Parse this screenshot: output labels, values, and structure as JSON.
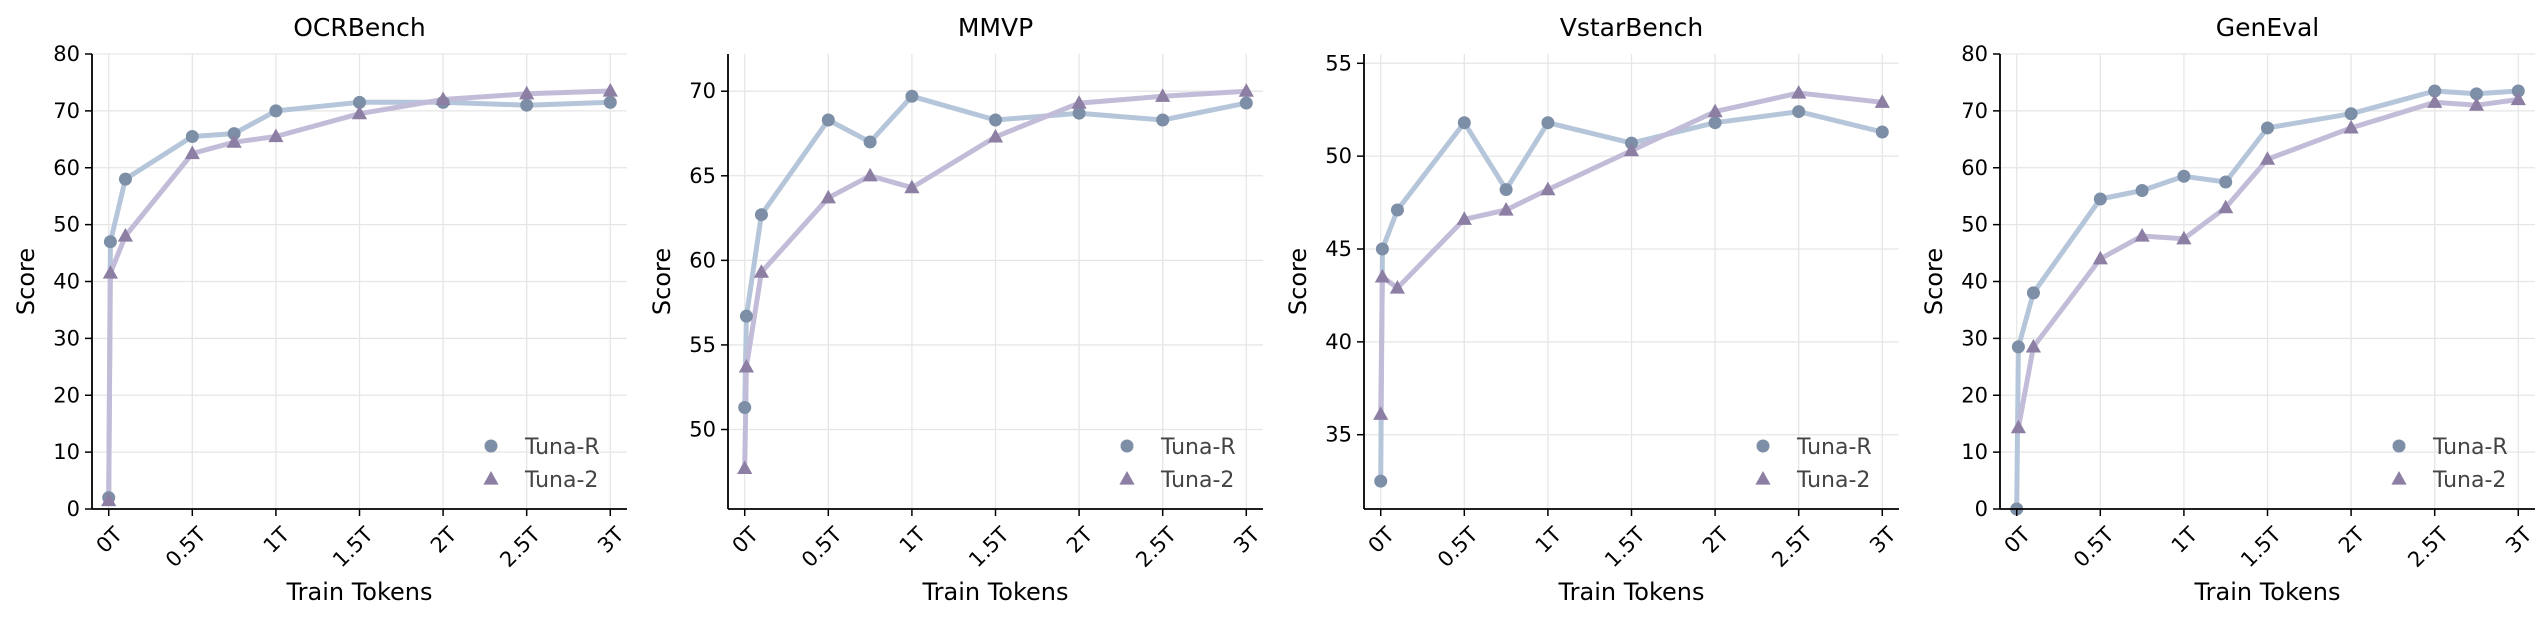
{
  "colors": {
    "tuna_r_marker": "#7d8fa6",
    "tuna_r_line": "#b6c6da",
    "tuna_2_marker": "#8c7fa3",
    "tuna_2_line": "#c3bcd8",
    "grid": "#e6e6e6",
    "axis": "#000000"
  },
  "chart_data": [
    {
      "type": "line",
      "title": "OCRBench",
      "xlabel": "Train Tokens",
      "ylabel": "Score",
      "xlim": [
        -0.1,
        3.1
      ],
      "ylim": [
        0,
        80
      ],
      "xticks": [
        0,
        0.5,
        1,
        1.5,
        2,
        2.5,
        3
      ],
      "xtick_labels": [
        "0T",
        "0.5T",
        "1T",
        "1.5T",
        "2T",
        "2.5T",
        "3T"
      ],
      "yticks": [
        0,
        10,
        20,
        30,
        40,
        50,
        60,
        70,
        80
      ],
      "ytick_labels": [
        "0",
        "10",
        "20",
        "30",
        "40",
        "50",
        "60",
        "70",
        "80"
      ],
      "grid": true,
      "legend": "lower-right",
      "series": [
        {
          "name": "Tuna-R",
          "marker": "circle",
          "x": [
            0,
            0.01,
            0.1,
            0.5,
            0.75,
            1,
            1.5,
            2,
            2.5,
            3
          ],
          "y": [
            2,
            47,
            58,
            65.5,
            66,
            70,
            71.5,
            71.5,
            71,
            71.5
          ]
        },
        {
          "name": "Tuna-2",
          "marker": "triangle",
          "x": [
            0,
            0.01,
            0.1,
            0.5,
            0.75,
            1,
            1.5,
            2,
            2.5,
            3
          ],
          "y": [
            1.5,
            41.5,
            48,
            62.5,
            64.5,
            65.5,
            69.5,
            72,
            73,
            73.5
          ]
        }
      ]
    },
    {
      "type": "line",
      "title": "MMVP",
      "xlabel": "Train Tokens",
      "ylabel": "Score",
      "xlim": [
        -0.1,
        3.1
      ],
      "ylim": [
        45.3,
        72.2
      ],
      "xticks": [
        0,
        0.5,
        1,
        1.5,
        2,
        2.5,
        3
      ],
      "xtick_labels": [
        "0T",
        "0.5T",
        "1T",
        "1.5T",
        "2T",
        "2.5T",
        "3T"
      ],
      "yticks": [
        50,
        55,
        60,
        65,
        70
      ],
      "ytick_labels": [
        "50",
        "55",
        "60",
        "65",
        "70"
      ],
      "grid": true,
      "legend": "lower-right",
      "series": [
        {
          "name": "Tuna-R",
          "marker": "circle",
          "x": [
            0,
            0.01,
            0.1,
            0.5,
            0.75,
            1,
            1.5,
            2,
            2.5,
            3
          ],
          "y": [
            51.3,
            56.7,
            62.7,
            68.3,
            67,
            69.7,
            68.3,
            68.7,
            68.3,
            69.3
          ]
        },
        {
          "name": "Tuna-2",
          "marker": "triangle",
          "x": [
            0,
            0.01,
            0.1,
            0.5,
            0.75,
            1,
            1.5,
            2,
            2.5,
            3
          ],
          "y": [
            47.7,
            53.7,
            59.3,
            63.7,
            65,
            64.3,
            67.3,
            69.3,
            69.7,
            70
          ]
        }
      ]
    },
    {
      "type": "line",
      "title": "VstarBench",
      "xlabel": "Train Tokens",
      "ylabel": "Score",
      "xlim": [
        -0.1,
        3.1
      ],
      "ylim": [
        31,
        55.5
      ],
      "xticks": [
        0,
        0.5,
        1,
        1.5,
        2,
        2.5,
        3
      ],
      "xtick_labels": [
        "0T",
        "0.5T",
        "1T",
        "1.5T",
        "2T",
        "2.5T",
        "3T"
      ],
      "yticks": [
        35,
        40,
        45,
        50,
        55
      ],
      "ytick_labels": [
        "35",
        "40",
        "45",
        "50",
        "55"
      ],
      "grid": true,
      "legend": "lower-right",
      "series": [
        {
          "name": "Tuna-R",
          "marker": "circle",
          "x": [
            0,
            0.01,
            0.1,
            0.5,
            0.75,
            1,
            1.5,
            2,
            2.5,
            3
          ],
          "y": [
            32.5,
            45,
            47.1,
            51.8,
            48.2,
            51.8,
            50.7,
            51.8,
            52.4,
            51.3
          ]
        },
        {
          "name": "Tuna-2",
          "marker": "triangle",
          "x": [
            0,
            0.01,
            0.1,
            0.5,
            0.75,
            1,
            1.5,
            2,
            2.5,
            3
          ],
          "y": [
            36.1,
            43.5,
            42.9,
            46.6,
            47.1,
            48.2,
            50.3,
            52.4,
            53.4,
            52.9
          ]
        }
      ]
    },
    {
      "type": "line",
      "title": "GenEval",
      "xlabel": "Train Tokens",
      "ylabel": "Score",
      "xlim": [
        -0.1,
        3.1
      ],
      "ylim": [
        0,
        80
      ],
      "xticks": [
        0,
        0.5,
        1,
        1.5,
        2,
        2.5,
        3
      ],
      "xtick_labels": [
        "0T",
        "0.5T",
        "1T",
        "1.5T",
        "2T",
        "2.5T",
        "3T"
      ],
      "yticks": [
        0,
        10,
        20,
        30,
        40,
        50,
        60,
        70,
        80
      ],
      "ytick_labels": [
        "0",
        "10",
        "20",
        "30",
        "40",
        "50",
        "60",
        "70",
        "80"
      ],
      "grid": true,
      "legend": "lower-right",
      "series": [
        {
          "name": "Tuna-R",
          "marker": "circle",
          "x": [
            0,
            0.01,
            0.1,
            0.5,
            0.75,
            1,
            1.25,
            1.5,
            2,
            2.5,
            2.75,
            3
          ],
          "y": [
            0,
            28.5,
            38,
            54.5,
            56,
            58.5,
            57.5,
            67,
            69.5,
            73.5,
            73,
            73.5
          ]
        },
        {
          "name": "Tuna-2",
          "marker": "triangle",
          "x": [
            0.01,
            0.1,
            0.5,
            0.75,
            1,
            1.25,
            1.5,
            2,
            2.5,
            2.75,
            3
          ],
          "y": [
            14.3,
            28.5,
            44,
            48,
            47.5,
            53,
            61.5,
            67,
            71.5,
            71,
            72
          ]
        }
      ]
    }
  ]
}
